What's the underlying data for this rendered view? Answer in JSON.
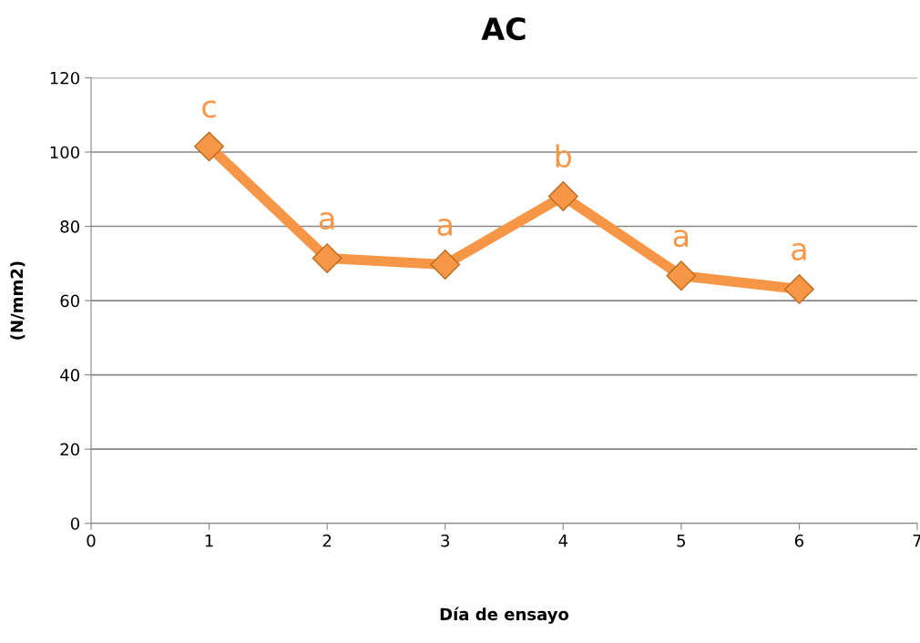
{
  "chart_data": {
    "type": "line",
    "title": "AC",
    "xlabel": "Día de ensayo",
    "ylabel": "(N/mm2)",
    "x": [
      1,
      2,
      3,
      4,
      5,
      6
    ],
    "series": [
      {
        "color": "#f79646",
        "values": [
          101.5,
          71.4,
          69.7,
          88.1,
          66.7,
          63.1
        ]
      }
    ],
    "xlim": [
      0,
      7
    ],
    "xticks": [
      0,
      1,
      2,
      3,
      4,
      5,
      6,
      7
    ],
    "ylim": [
      0,
      120
    ],
    "yticks": [
      0,
      20,
      40,
      60,
      80,
      100,
      120
    ],
    "grid": "y",
    "marker": "diamond",
    "line_style": "solid",
    "legend": false,
    "annotations": [
      {
        "text": "c",
        "x": 1,
        "y": 101.5
      },
      {
        "text": "a",
        "x": 2,
        "y": 71.4
      },
      {
        "text": "a",
        "x": 3,
        "y": 69.7
      },
      {
        "text": "b",
        "x": 4,
        "y": 88.1
      },
      {
        "text": "a",
        "x": 5,
        "y": 66.7
      },
      {
        "text": "a",
        "x": 6,
        "y": 63.1
      }
    ]
  }
}
